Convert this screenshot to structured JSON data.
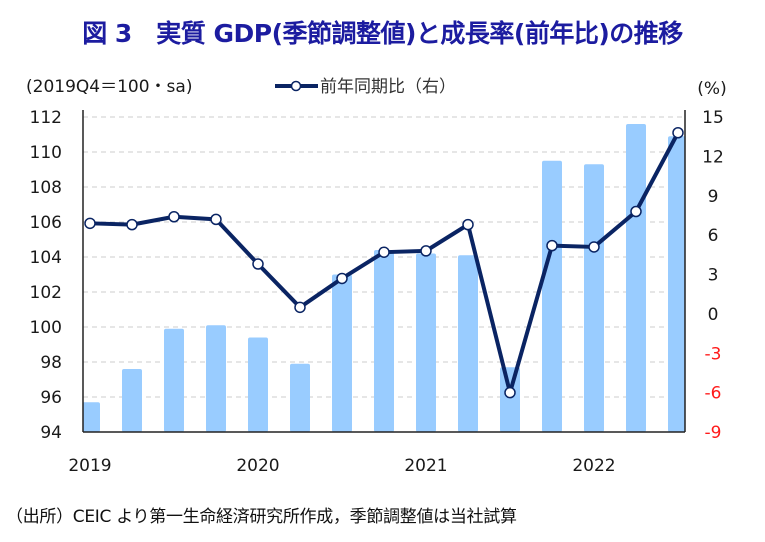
{
  "title": "図 3　実質 GDP(季節調整値)と成長率(前年比)の推移",
  "footnote": "（出所）CEIC より第一生命経済研究所作成，季節調整値は当社試算",
  "colors": {
    "title": "#1c1ca0",
    "bar": "#99ccff",
    "line": "#0a2463",
    "marker_fill": "#ffffff",
    "negative_tick": "#ff1a1a",
    "grid": "#cccccc"
  },
  "chart_data": {
    "type": "bar+line",
    "title": "図 3　実質 GDP(季節調整値)と成長率(前年比)の推移",
    "left_axis_label": "(2019Q4＝100・sa)",
    "right_axis_label": "(%)",
    "categories": [
      "2019Q1",
      "2019Q2",
      "2019Q3",
      "2019Q4",
      "2020Q1",
      "2020Q2",
      "2020Q3",
      "2020Q4",
      "2021Q1",
      "2021Q2",
      "2021Q3",
      "2021Q4",
      "2022Q1",
      "2022Q2",
      "2022Q3"
    ],
    "x_tick_labels": [
      {
        "index": 0,
        "label": "2019"
      },
      {
        "index": 4,
        "label": "2020"
      },
      {
        "index": 8,
        "label": "2021"
      },
      {
        "index": 12,
        "label": "2022"
      }
    ],
    "series": [
      {
        "name": "実質GDP(季節調整値)",
        "type": "bar",
        "axis": "left",
        "values": [
          95.7,
          97.6,
          99.9,
          100.1,
          99.4,
          97.9,
          103.0,
          104.4,
          104.2,
          104.1,
          97.7,
          109.5,
          109.3,
          111.6,
          110.9
        ]
      },
      {
        "name": "前年同期比（右）",
        "type": "line",
        "axis": "right",
        "values": [
          6.9,
          6.8,
          7.4,
          7.2,
          3.8,
          0.5,
          2.7,
          4.7,
          4.8,
          6.8,
          -6.0,
          5.2,
          5.1,
          7.8,
          13.8
        ]
      }
    ],
    "left_axis": {
      "min": 94,
      "max": 112,
      "step": 2,
      "ticks": [
        "112",
        "110",
        "108",
        "106",
        "104",
        "102",
        "100",
        "98",
        "96",
        "94"
      ]
    },
    "right_axis": {
      "min": -9,
      "max": 15,
      "step": 3,
      "ticks": [
        "15",
        "12",
        "9",
        "6",
        "3",
        "0",
        "-3",
        "-6",
        "-9"
      ]
    },
    "legend": [
      {
        "label": "前年同期比（右）",
        "marker": "line-circle"
      }
    ],
    "legend_position": "top-center",
    "grid": true
  }
}
